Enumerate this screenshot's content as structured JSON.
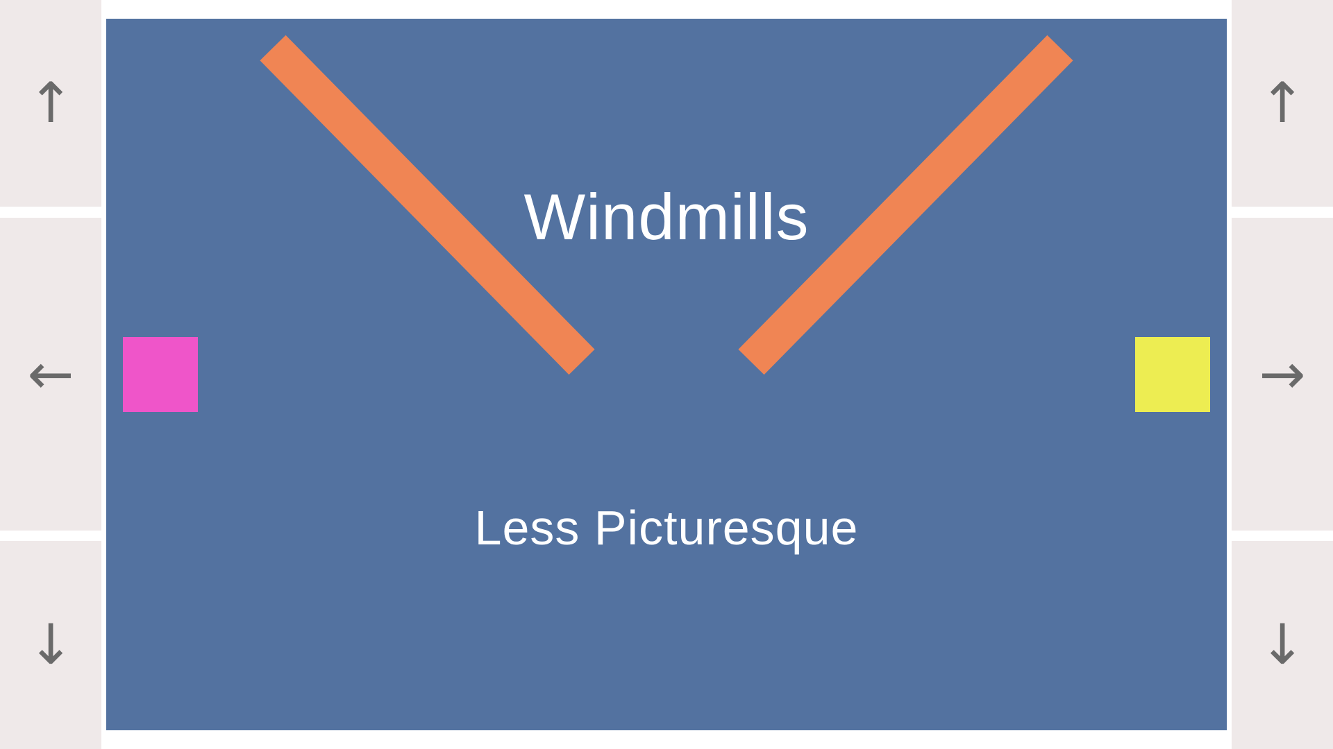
{
  "controls": {
    "left_up_icon": "↑",
    "left_left_icon": "←",
    "left_down_icon": "↓",
    "right_up_icon": "↑",
    "right_right_icon": "→",
    "right_down_icon": "↓"
  },
  "board": {
    "title": "Windmills",
    "subtitle": "Less Picturesque",
    "background_color": "#5372a0",
    "blade_color": "#f08554",
    "left_square_color": "#ef55c9",
    "right_square_color": "#eded52"
  }
}
